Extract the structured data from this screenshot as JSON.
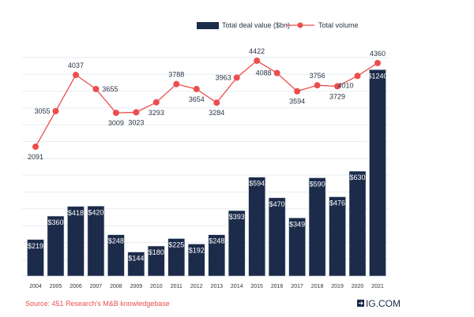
{
  "chart_data": {
    "type": "bar+line",
    "categories": [
      "2004",
      "2005",
      "2006",
      "2007",
      "2008",
      "2009",
      "2010",
      "2011",
      "2012",
      "2013",
      "2014",
      "2015",
      "2016",
      "2017",
      "2018",
      "2019",
      "2020",
      "2021"
    ],
    "series": [
      {
        "name": "Total deal value ($bn)",
        "type": "bar",
        "axis": "left",
        "values": [
          219,
          360,
          418,
          420,
          248,
          144,
          180,
          225,
          192,
          248,
          393,
          594,
          470,
          349,
          590,
          476,
          630,
          1240
        ],
        "labels": [
          "$219",
          "$360",
          "$418",
          "$420",
          "$248",
          "$144",
          "$180",
          "$225",
          "$192",
          "$248",
          "$393",
          "$594",
          "$470",
          "$349",
          "$590",
          "$476",
          "$630",
          "$1240"
        ]
      },
      {
        "name": "Total volume",
        "type": "line",
        "axis": "right",
        "values": [
          2091,
          3055,
          4037,
          3655,
          3009,
          3023,
          3293,
          3788,
          3654,
          3284,
          3963,
          4422,
          4088,
          3594,
          3756,
          3729,
          4010,
          4360
        ],
        "labels": [
          "2091",
          "3055",
          "4037",
          "3655",
          "3009",
          "3023",
          "3293",
          "3788",
          "3654",
          "3284",
          "3963",
          "4422",
          "4088",
          "3594",
          "3756",
          "3729",
          "4010",
          "4360"
        ]
      }
    ],
    "ylim_left": [
      0,
      1313
    ],
    "ylim_right": [
      -1416,
      4508
    ],
    "grid": true,
    "legend_position": "top-right",
    "colors": {
      "bar": "#1c2b4a",
      "line": "#ec4d4d",
      "grid": "#e6eef0",
      "source": "#ec4d4d"
    }
  },
  "legend": {
    "bar_label": "Total deal value ($bn)",
    "line_label": "Total volume"
  },
  "source": "Source: 451 Research's M&B knowledgebase",
  "brand": "IG.COM"
}
